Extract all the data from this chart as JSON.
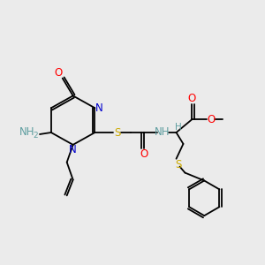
{
  "background_color": "#ebebeb",
  "colors": {
    "C": "#000000",
    "N": "#0000cc",
    "O": "#ff0000",
    "S": "#ccaa00",
    "H": "#5f9ea0",
    "bond": "#000000"
  },
  "figsize": [
    3.0,
    3.0
  ],
  "dpi": 100
}
